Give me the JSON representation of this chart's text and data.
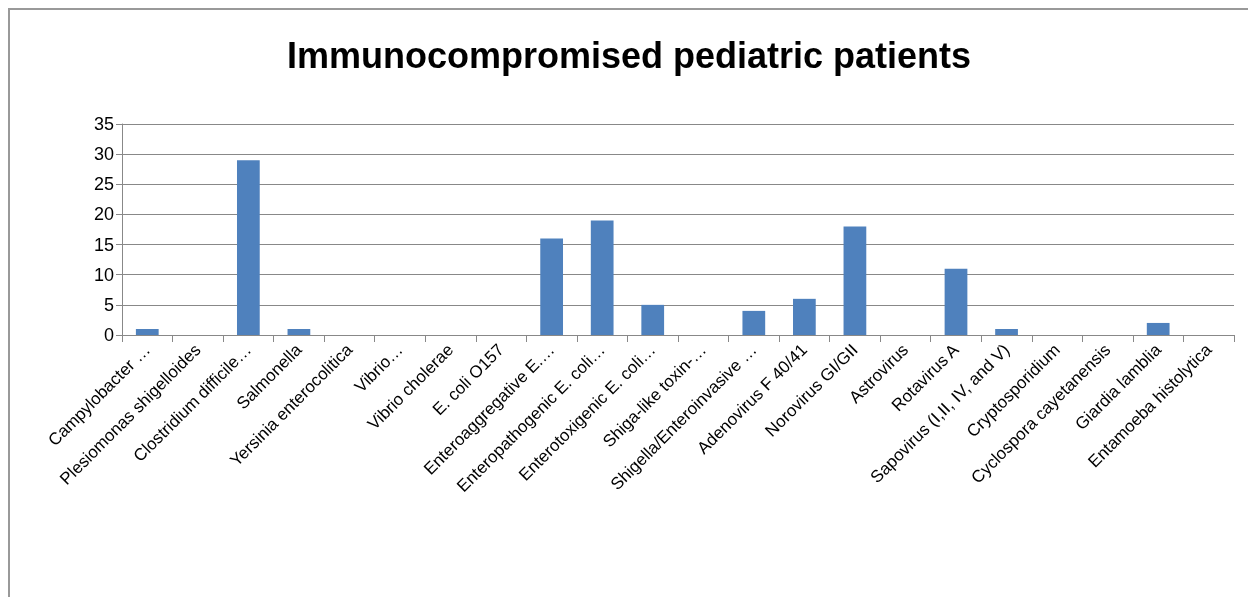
{
  "chart_data": {
    "type": "bar",
    "title": "Immunocompromised pediatric patients",
    "categories": [
      "Campylobacter …",
      "Plesiomonas shigelloides",
      "Clostridium difficile…",
      "Salmonella",
      "Yersinia enterocolitica",
      "Vibrio…",
      "Vibrio cholerae",
      "E. coli O157",
      "Enteroaggregative E.…",
      "Enteropathogenic E. coli…",
      "Enterotoxigenic E. coli…",
      "Shiga-like toxin-…",
      "Shigella/Enteroinvasive …",
      "Adenovirus F 40/41",
      "Norovirus GI/GII",
      "Astrovirus",
      "Rotavirus A",
      "Sapovirus (I,II, IV, and V)",
      "Cryptosporidium",
      "Cyclospora cayetanensis",
      "Giardia lamblia",
      "Entamoeba histolytica"
    ],
    "values": [
      1,
      0,
      29,
      1,
      0,
      0,
      0,
      0,
      16,
      19,
      5,
      0,
      4,
      6,
      18,
      0,
      11,
      1,
      0,
      0,
      2,
      0
    ],
    "color": "#4f81bd",
    "ylim": [
      0,
      35
    ],
    "yticks": [
      0,
      5,
      10,
      15,
      20,
      25,
      30,
      35
    ],
    "grid": "y"
  }
}
